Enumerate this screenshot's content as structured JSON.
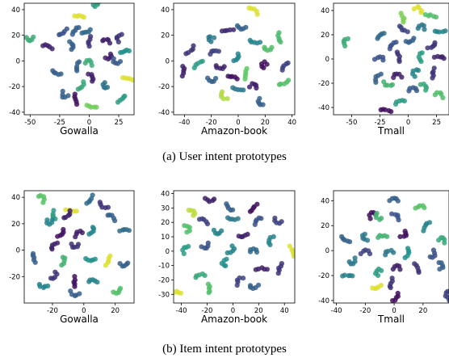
{
  "captions": {
    "top": "(a)  User intent prototypes",
    "bottom": "(b)  Item intent prototypes"
  },
  "colormap": [
    "#440154",
    "#3b528b",
    "#21918c",
    "#5ec962",
    "#fde725"
  ],
  "chart_data": [
    {
      "type": "scatter",
      "xlabel": "Gowalla",
      "xlim": [
        -55,
        38
      ],
      "ylim": [
        -42,
        45
      ],
      "xticks": [
        "-50",
        "-25",
        "0",
        "25"
      ],
      "xtick_values": [
        -50,
        -25,
        0,
        25
      ],
      "yticks": [
        "-40",
        "-20",
        "0",
        "20",
        "40"
      ],
      "ytick_values": [
        -40,
        -20,
        0,
        20,
        40
      ],
      "grid": false,
      "clusters": [
        {
          "x": -8,
          "y": 35,
          "c": 0.95
        },
        {
          "x": 7,
          "y": 44,
          "c": 0.55
        },
        {
          "x": -12,
          "y": 24,
          "c": 0.3
        },
        {
          "x": -2,
          "y": 22,
          "c": 0.35
        },
        {
          "x": -22,
          "y": 22,
          "c": 0.25
        },
        {
          "x": -35,
          "y": 12,
          "c": 0.1
        },
        {
          "x": -14,
          "y": 12,
          "c": 0.3
        },
        {
          "x": 0,
          "y": 15,
          "c": 0.15
        },
        {
          "x": 15,
          "y": 17,
          "c": 0.1
        },
        {
          "x": 24,
          "y": 19,
          "c": 0.15
        },
        {
          "x": -50,
          "y": 16,
          "c": 0.62
        },
        {
          "x": 18,
          "y": 2,
          "c": 0.1
        },
        {
          "x": -10,
          "y": -4,
          "c": 0.3
        },
        {
          "x": -28,
          "y": -10,
          "c": 0.3
        },
        {
          "x": 0,
          "y": 0,
          "c": 0.62
        },
        {
          "x": 22,
          "y": -2,
          "c": 0.28
        },
        {
          "x": 30,
          "y": 8,
          "c": 0.5
        },
        {
          "x": 33,
          "y": -14,
          "c": 0.95
        },
        {
          "x": 3,
          "y": -12,
          "c": 0.1
        },
        {
          "x": 12,
          "y": -20,
          "c": 0.38
        },
        {
          "x": -6,
          "y": -20,
          "c": 0.6
        },
        {
          "x": -22,
          "y": -28,
          "c": 0.3
        },
        {
          "x": -12,
          "y": -30,
          "c": 0.05
        },
        {
          "x": 2,
          "y": -36,
          "c": 0.78
        },
        {
          "x": 28,
          "y": -30,
          "c": 0.55
        }
      ]
    },
    {
      "type": "scatter",
      "xlabel": "Amazon-book",
      "xlim": [
        -48,
        42
      ],
      "ylim": [
        -42,
        45
      ],
      "xticks": [
        "-40",
        "-20",
        "0",
        "20",
        "40"
      ],
      "xtick_values": [
        -40,
        -20,
        0,
        20,
        40
      ],
      "yticks": [
        "-40",
        "-20",
        "0",
        "20",
        "40"
      ],
      "ytick_values": [
        -40,
        -20,
        0,
        20,
        40
      ],
      "grid": false,
      "clusters": [
        {
          "x": 12,
          "y": 40,
          "c": 0.95
        },
        {
          "x": 2,
          "y": 25,
          "c": 0.3
        },
        {
          "x": -8,
          "y": 24,
          "c": 0.12
        },
        {
          "x": -22,
          "y": 18,
          "c": 0.4
        },
        {
          "x": -35,
          "y": 8,
          "c": 0.15
        },
        {
          "x": -18,
          "y": 8,
          "c": 0.2
        },
        {
          "x": -30,
          "y": -2,
          "c": 0.55
        },
        {
          "x": 12,
          "y": 14,
          "c": 0.45
        },
        {
          "x": 30,
          "y": 18,
          "c": 0.68
        },
        {
          "x": -40,
          "y": -8,
          "c": 0.1
        },
        {
          "x": -14,
          "y": -6,
          "c": 0.1
        },
        {
          "x": 0,
          "y": 2,
          "c": 0.45
        },
        {
          "x": 22,
          "y": 8,
          "c": 0.7
        },
        {
          "x": 18,
          "y": -2,
          "c": 0.05
        },
        {
          "x": 6,
          "y": -10,
          "c": 0.75
        },
        {
          "x": -4,
          "y": -12,
          "c": 0.05
        },
        {
          "x": -20,
          "y": -16,
          "c": 0.3
        },
        {
          "x": 12,
          "y": -18,
          "c": 0.1
        },
        {
          "x": 34,
          "y": -18,
          "c": 0.7
        },
        {
          "x": 0,
          "y": -22,
          "c": 0.4
        },
        {
          "x": -12,
          "y": -28,
          "c": 0.88
        },
        {
          "x": 15,
          "y": -33,
          "c": 0.3
        },
        {
          "x": 34,
          "y": -4,
          "c": 0.2
        }
      ]
    },
    {
      "type": "scatter",
      "xlabel": "Tmall",
      "xlim": [
        -66,
        36
      ],
      "ylim": [
        -46,
        46
      ],
      "xticks": [
        "-50",
        "-25",
        "0",
        "25"
      ],
      "xtick_values": [
        -50,
        -25,
        0,
        25
      ],
      "yticks": [
        "-40",
        "-20",
        "0",
        "20",
        "40"
      ],
      "ytick_values": [
        -40,
        -20,
        0,
        20,
        40
      ],
      "grid": false,
      "clusters": [
        {
          "x": 10,
          "y": 42,
          "c": 0.95
        },
        {
          "x": -4,
          "y": 34,
          "c": 0.8
        },
        {
          "x": 20,
          "y": 36,
          "c": 0.7
        },
        {
          "x": -25,
          "y": 20,
          "c": 0.35
        },
        {
          "x": -5,
          "y": 24,
          "c": 0.2
        },
        {
          "x": 12,
          "y": 28,
          "c": 0.4
        },
        {
          "x": 28,
          "y": 22,
          "c": 0.45
        },
        {
          "x": -57,
          "y": 15,
          "c": 0.62
        },
        {
          "x": -15,
          "y": 12,
          "c": 0.25
        },
        {
          "x": 2,
          "y": 14,
          "c": 0.3
        },
        {
          "x": 22,
          "y": 10,
          "c": 0.15
        },
        {
          "x": -25,
          "y": 2,
          "c": 0.25
        },
        {
          "x": -8,
          "y": 2,
          "c": 0.15
        },
        {
          "x": 10,
          "y": 2,
          "c": 0.55
        },
        {
          "x": 28,
          "y": 2,
          "c": 0.1
        },
        {
          "x": -28,
          "y": -15,
          "c": 0.3
        },
        {
          "x": -10,
          "y": -12,
          "c": 0.1
        },
        {
          "x": 5,
          "y": -10,
          "c": 0.45
        },
        {
          "x": 22,
          "y": -12,
          "c": 0.15
        },
        {
          "x": -18,
          "y": -22,
          "c": 0.65
        },
        {
          "x": 4,
          "y": -24,
          "c": 0.28
        },
        {
          "x": 28,
          "y": -28,
          "c": 0.7
        },
        {
          "x": -8,
          "y": -34,
          "c": 0.55
        },
        {
          "x": -20,
          "y": -42,
          "c": 0.05
        },
        {
          "x": 16,
          "y": -22,
          "c": 0.6
        }
      ]
    },
    {
      "type": "scatter",
      "xlabel": "Gowalla",
      "xlim": [
        -38,
        32
      ],
      "ylim": [
        -40,
        45
      ],
      "xticks": [
        "-20",
        "0",
        "20"
      ],
      "xtick_values": [
        -20,
        0,
        20
      ],
      "yticks": [
        "-20",
        "0",
        "20",
        "40"
      ],
      "ytick_values": [
        -20,
        0,
        20,
        40
      ],
      "grid": false,
      "clusters": [
        {
          "x": -26,
          "y": 40,
          "c": 0.72
        },
        {
          "x": 4,
          "y": 38,
          "c": 0.35
        },
        {
          "x": 12,
          "y": 33,
          "c": 0.15
        },
        {
          "x": -20,
          "y": 26,
          "c": 0.55
        },
        {
          "x": -8,
          "y": 30,
          "c": 0.95
        },
        {
          "x": -10,
          "y": 26,
          "c": 0.1
        },
        {
          "x": 18,
          "y": 26,
          "c": 0.3
        },
        {
          "x": -22,
          "y": 20,
          "c": 0.45
        },
        {
          "x": 26,
          "y": 16,
          "c": 0.35
        },
        {
          "x": 6,
          "y": 14,
          "c": 0.45
        },
        {
          "x": -14,
          "y": 12,
          "c": 0.05
        },
        {
          "x": -4,
          "y": 14,
          "c": 0.1
        },
        {
          "x": -20,
          "y": 4,
          "c": 0.1
        },
        {
          "x": -6,
          "y": 2,
          "c": 0.15
        },
        {
          "x": -32,
          "y": -6,
          "c": 0.3
        },
        {
          "x": -12,
          "y": -8,
          "c": 0.65
        },
        {
          "x": 4,
          "y": -8,
          "c": 0.5
        },
        {
          "x": 16,
          "y": -8,
          "c": 0.95
        },
        {
          "x": 26,
          "y": -12,
          "c": 0.3
        },
        {
          "x": -18,
          "y": -20,
          "c": 0.15
        },
        {
          "x": -6,
          "y": -24,
          "c": 0.05
        },
        {
          "x": 6,
          "y": -22,
          "c": 0.45
        },
        {
          "x": -26,
          "y": -28,
          "c": 0.45
        },
        {
          "x": -6,
          "y": -34,
          "c": 0.3
        },
        {
          "x": 22,
          "y": -32,
          "c": 0.7
        }
      ]
    },
    {
      "type": "scatter",
      "xlabel": "Amazon-book",
      "xlim": [
        -46,
        48
      ],
      "ylim": [
        -36,
        42
      ],
      "xticks": [
        "-40",
        "-20",
        "0",
        "20",
        "40"
      ],
      "xtick_values": [
        -40,
        -20,
        0,
        20,
        40
      ],
      "yticks": [
        "-30",
        "-20",
        "-10",
        "0",
        "10",
        "20",
        "30",
        "40"
      ],
      "ytick_values": [
        -30,
        -20,
        -10,
        0,
        10,
        20,
        30,
        40
      ],
      "grid": false,
      "clusters": [
        {
          "x": -18,
          "y": 35,
          "c": 0.1
        },
        {
          "x": -30,
          "y": 28,
          "c": 0.9
        },
        {
          "x": -4,
          "y": 30,
          "c": 0.3
        },
        {
          "x": 16,
          "y": 30,
          "c": 0.05
        },
        {
          "x": -22,
          "y": 22,
          "c": 0.2
        },
        {
          "x": -34,
          "y": 16,
          "c": 0.7
        },
        {
          "x": 0,
          "y": 22,
          "c": 0.4
        },
        {
          "x": 18,
          "y": 22,
          "c": 0.25
        },
        {
          "x": 34,
          "y": 20,
          "c": 0.2
        },
        {
          "x": -12,
          "y": 12,
          "c": 0.45
        },
        {
          "x": 8,
          "y": 10,
          "c": 0.1
        },
        {
          "x": 28,
          "y": 8,
          "c": 0.45
        },
        {
          "x": -38,
          "y": 2,
          "c": 0.55
        },
        {
          "x": -20,
          "y": 2,
          "c": 0.25
        },
        {
          "x": 0,
          "y": 0,
          "c": 0.45
        },
        {
          "x": 16,
          "y": 2,
          "c": 0.35
        },
        {
          "x": 46,
          "y": 0,
          "c": 0.95
        },
        {
          "x": -8,
          "y": -8,
          "c": 0.5
        },
        {
          "x": 22,
          "y": -12,
          "c": 0.1
        },
        {
          "x": 36,
          "y": -12,
          "c": 0.15
        },
        {
          "x": -26,
          "y": -16,
          "c": 0.6
        },
        {
          "x": 4,
          "y": -20,
          "c": 0.2
        },
        {
          "x": -18,
          "y": -26,
          "c": 0.7
        },
        {
          "x": 16,
          "y": -26,
          "c": 0.3
        },
        {
          "x": -44,
          "y": -28,
          "c": 0.95
        }
      ]
    },
    {
      "type": "scatter",
      "xlabel": "Tmall",
      "xlim": [
        -42,
        38
      ],
      "ylim": [
        -42,
        48
      ],
      "xticks": [
        "-40",
        "-20",
        "0",
        "20"
      ],
      "xtick_values": [
        -40,
        -20,
        0,
        20
      ],
      "yticks": [
        "-40",
        "-20",
        "0",
        "20",
        "40"
      ],
      "ytick_values": [
        -40,
        -20,
        0,
        20,
        40
      ],
      "grid": false,
      "clusters": [
        {
          "x": 0,
          "y": 42,
          "c": 0.3
        },
        {
          "x": -16,
          "y": 30,
          "c": 0.05
        },
        {
          "x": 18,
          "y": 36,
          "c": 0.72
        },
        {
          "x": -12,
          "y": 26,
          "c": 0.65
        },
        {
          "x": 2,
          "y": 28,
          "c": 0.25
        },
        {
          "x": 22,
          "y": 20,
          "c": 0.45
        },
        {
          "x": -34,
          "y": 8,
          "c": 0.3
        },
        {
          "x": -22,
          "y": 10,
          "c": 0.4
        },
        {
          "x": -8,
          "y": 12,
          "c": 0.65
        },
        {
          "x": 8,
          "y": 12,
          "c": 0.05
        },
        {
          "x": 34,
          "y": 10,
          "c": 0.6
        },
        {
          "x": -20,
          "y": 0,
          "c": 0.2
        },
        {
          "x": -4,
          "y": 0,
          "c": 0.4
        },
        {
          "x": 10,
          "y": -2,
          "c": 0.5
        },
        {
          "x": 28,
          "y": -4,
          "c": 0.25
        },
        {
          "x": -28,
          "y": -10,
          "c": 0.4
        },
        {
          "x": -12,
          "y": -16,
          "c": 0.55
        },
        {
          "x": 2,
          "y": -12,
          "c": 0.1
        },
        {
          "x": 16,
          "y": -14,
          "c": 0.15
        },
        {
          "x": 34,
          "y": -12,
          "c": 0.3
        },
        {
          "x": -32,
          "y": -20,
          "c": 0.45
        },
        {
          "x": -2,
          "y": -26,
          "c": 0.15
        },
        {
          "x": -12,
          "y": -30,
          "c": 0.95
        },
        {
          "x": 2,
          "y": -38,
          "c": 0.05
        },
        {
          "x": 36,
          "y": -36,
          "c": 0.2
        }
      ]
    }
  ]
}
